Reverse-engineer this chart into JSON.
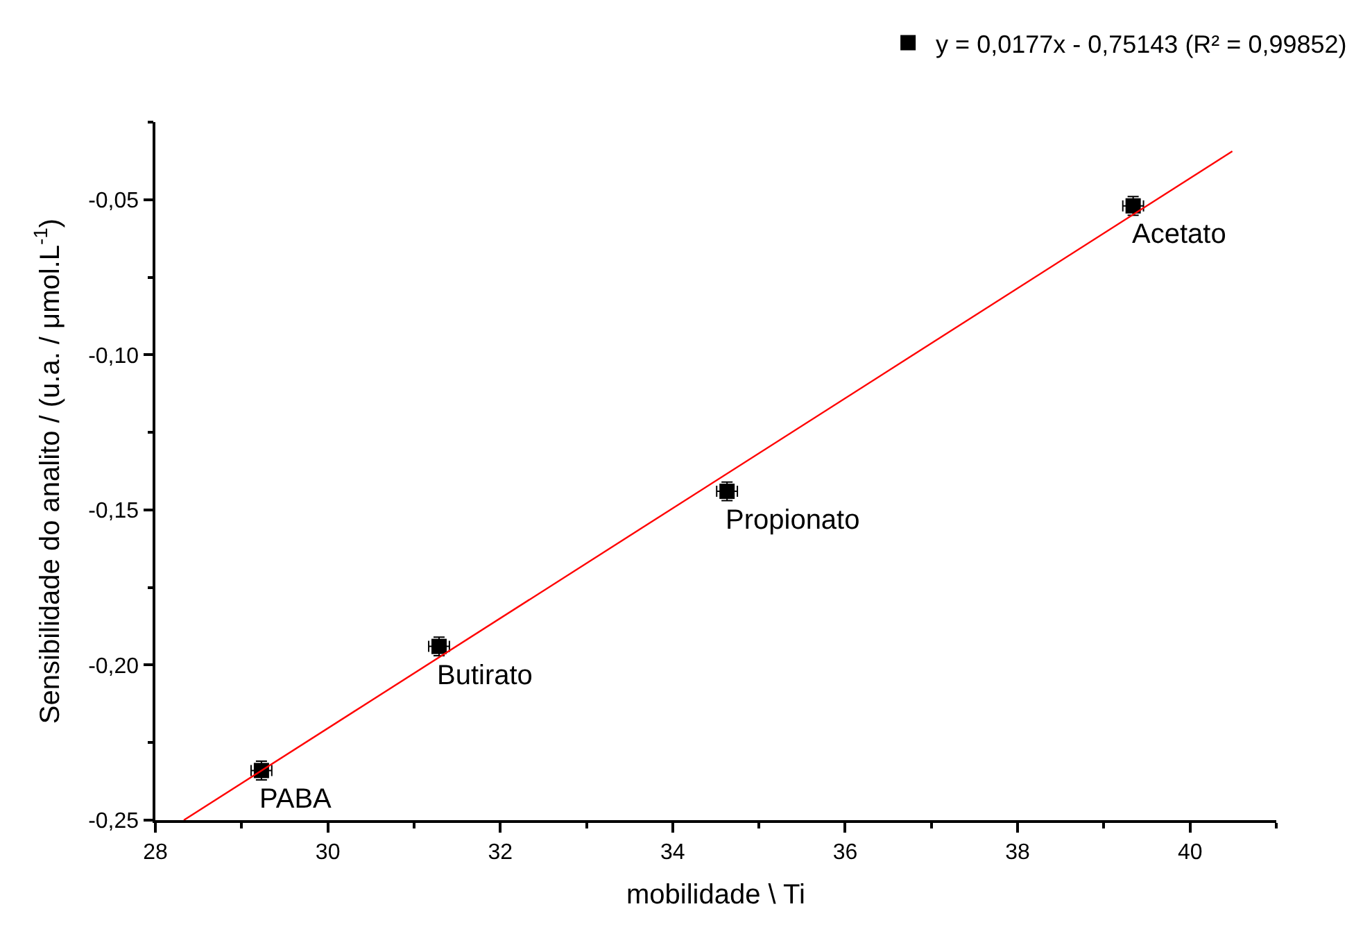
{
  "chart_data": {
    "type": "scatter",
    "xlabel": "mobilidade \\ Ti",
    "ylabel": "Sensibilidade do analito / (u.a. / μmol.L$^{-1}$)",
    "series": [
      {
        "name": "y = 0,0177x - 0,75143 (R² = 0,99852)",
        "color": "#000000",
        "x": [
          29.23,
          31.29,
          34.63,
          39.34
        ],
        "values": [
          -0.234,
          -0.194,
          -0.144,
          -0.052
        ],
        "errors": [
          0.003,
          0.003,
          0.003,
          0.003
        ],
        "xerrors": [
          0.12,
          0.12,
          0.12,
          0.12
        ],
        "marker": "square"
      },
      {
        "type": "line",
        "color": "#ff0000",
        "marker": "none",
        "x": [
          28.33,
          40.49
        ],
        "values": [
          -0.25,
          -0.0344
        ]
      }
    ],
    "annotations": [
      {
        "text": "PABA",
        "x": 29.23,
        "y": -0.234
      },
      {
        "text": "Butirato",
        "x": 31.29,
        "y": -0.194
      },
      {
        "text": "Propionato",
        "x": 34.63,
        "y": -0.144
      },
      {
        "text": "Acetato",
        "x": 39.34,
        "y": -0.052
      }
    ],
    "xlim": [
      28,
      41
    ],
    "xticks": [
      28,
      30,
      32,
      34,
      36,
      38,
      40
    ],
    "ylim": [
      -0.25,
      -0.025
    ],
    "yticks": [
      {
        "value": -0.25,
        "label": "-0,25"
      },
      {
        "value": -0.2,
        "label": "-0,20"
      },
      {
        "value": -0.15,
        "label": "-0,15"
      },
      {
        "value": -0.1,
        "label": "-0,10"
      },
      {
        "value": -0.05,
        "label": "-0,05"
      }
    ],
    "legend": "top right"
  }
}
